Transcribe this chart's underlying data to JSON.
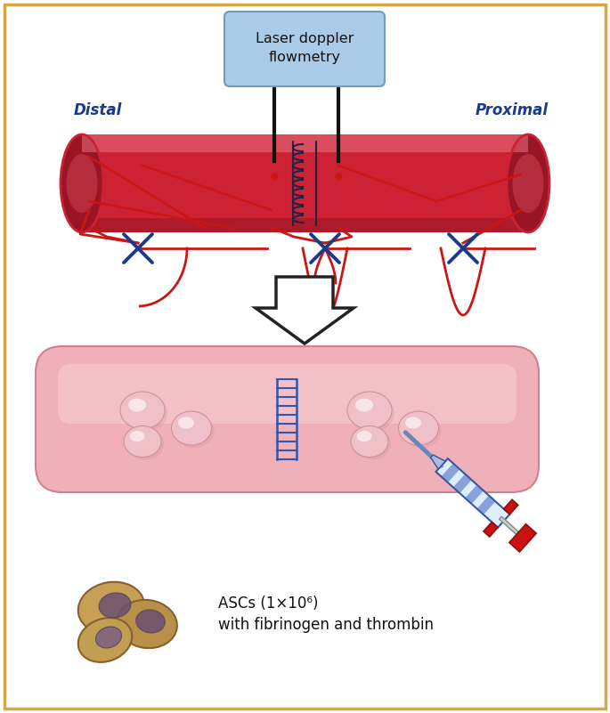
{
  "bg_color": "#ffffff",
  "border_color": "#d4a843",
  "laser_box_text": "Laser doppler\nflowmetry",
  "laser_box_color": "#aacce8",
  "laser_box_border": "#7799bb",
  "distal_label": "Distal",
  "proximal_label": "Proximal",
  "tube_color_main": "#cc2233",
  "tube_color_light": "#e05060",
  "tube_color_highlight": "#e87080",
  "tube_color_shadow": "#991525",
  "tube_end_dark": "#881020",
  "suture_color": "#222244",
  "vessel_line_color": "#cc1515",
  "clip_color": "#1a3a8a",
  "label_color": "#1a3a8a",
  "arrow_fill": "#ffffff",
  "arrow_edge": "#222222",
  "asc_text_line1": "ASCs (1×10⁶)",
  "asc_text_line2": "with fibrinogen and thrombin",
  "bottom_tube_fill": "#f0b0b8",
  "bottom_tube_edge": "#d08090",
  "bottom_tube_highlight": "#f8d0d8",
  "bottom_suture_color": "#3355aa",
  "bump_fill": "#f0c0c8",
  "bump_edge": "#d09098"
}
